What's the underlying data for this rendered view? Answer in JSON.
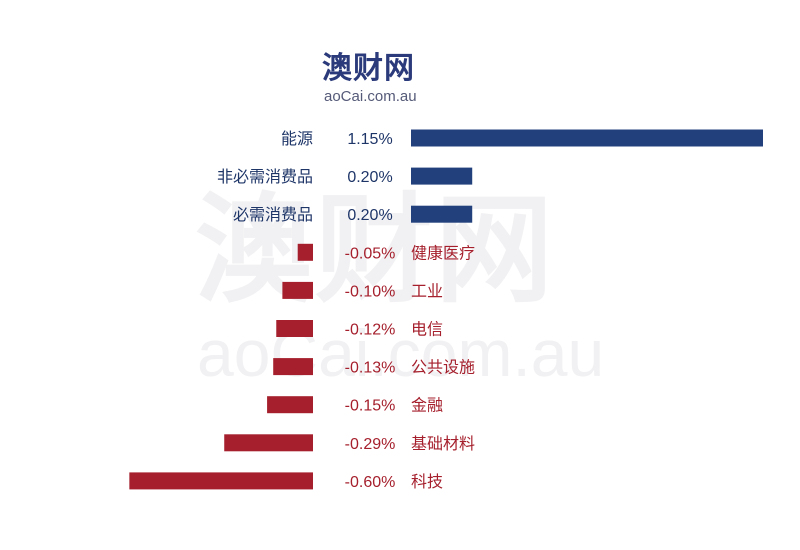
{
  "logo": {
    "name_cn": "澳财网",
    "domain": "aoCai.com.au"
  },
  "watermark": {
    "name_cn": "澳财网",
    "domain": "aoCai.com.au"
  },
  "colors": {
    "positive": "#22417c",
    "negative": "#a51f2c",
    "positive_text": "#1e3568",
    "negative_text": "#a51f2c"
  },
  "chart_data": {
    "type": "bar",
    "orientation": "horizontal",
    "unit": "%",
    "categories": [
      "能源",
      "非必需消费品",
      "必需消费品",
      "健康医疗",
      "工业",
      "电信",
      "公共设施",
      "金融",
      "基础材料",
      "科技"
    ],
    "values": [
      1.15,
      0.2,
      0.2,
      -0.05,
      -0.1,
      -0.12,
      -0.13,
      -0.15,
      -0.29,
      -0.6
    ],
    "value_labels": [
      "1.15%",
      "0.20%",
      "0.20%",
      "-0.05%",
      "-0.10%",
      "-0.12%",
      "-0.13%",
      "-0.15%",
      "-0.29%",
      "-0.60%"
    ],
    "grid": false,
    "legend": false
  }
}
